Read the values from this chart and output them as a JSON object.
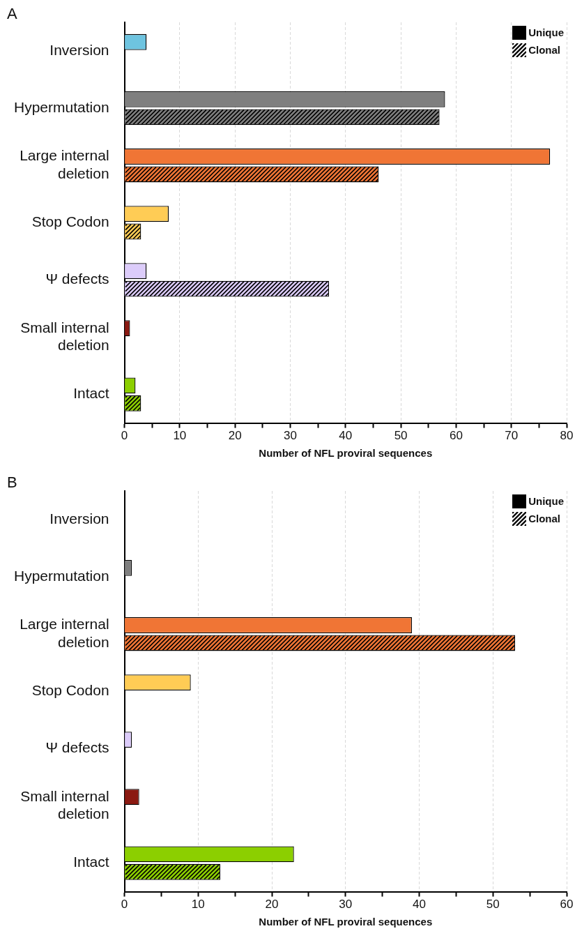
{
  "chart_data": [
    {
      "type": "bar",
      "title": "A",
      "orientation": "horizontal",
      "xlabel": "Number of NFL proviral sequences",
      "categories": [
        "Inversion",
        "Hypermutation",
        "Large internal deletion",
        "Stop Codon",
        "Ψ defects",
        "Small internal deletion",
        "Intact"
      ],
      "series": [
        {
          "name": "Unique",
          "colors": [
            "#6ec4e0",
            "#7f7f7f",
            "#f07535",
            "#ffcc55",
            "#dcccfa",
            "#8b1a12",
            "#8ccf00"
          ],
          "values": [
            4,
            58,
            77,
            8,
            4,
            1,
            2
          ]
        },
        {
          "name": "Clonal",
          "colors": [
            "#6ec4e0",
            "#7f7f7f",
            "#f07535",
            "#ffcc55",
            "#dcccfa",
            "#8b1a12",
            "#8ccf00"
          ],
          "values": [
            null,
            57,
            46,
            3,
            37,
            null,
            3
          ]
        }
      ],
      "xlim": [
        0,
        80
      ],
      "xticks": [
        0,
        {
          "value": 5,
          "label": null
        },
        10,
        {
          "value": 15,
          "label": null
        },
        20,
        {
          "value": 25,
          "label": null
        },
        30,
        {
          "value": 35,
          "label": null
        },
        40,
        {
          "value": 45,
          "label": null
        },
        50,
        {
          "value": 55,
          "label": null
        },
        60,
        {
          "value": 65,
          "label": null
        },
        70,
        {
          "value": 75,
          "label": null
        },
        80
      ],
      "grid": "x",
      "legend": "top right"
    },
    {
      "type": "bar",
      "title": "B",
      "orientation": "horizontal",
      "xlabel": "Number of NFL proviral sequences",
      "categories": [
        "Inversion",
        "Hypermutation",
        "Large internal deletion",
        "Stop Codon",
        "Ψ defects",
        "Small internal deletion",
        "Intact"
      ],
      "series": [
        {
          "name": "Unique",
          "colors": [
            "#6ec4e0",
            "#7f7f7f",
            "#f07535",
            "#ffcc55",
            "#dcccfa",
            "#8b1a12",
            "#8ccf00"
          ],
          "values": [
            null,
            1,
            39,
            9,
            1,
            2,
            23
          ]
        },
        {
          "name": "Clonal",
          "colors": [
            "#6ec4e0",
            "#7f7f7f",
            "#f07535",
            "#ffcc55",
            "#dcccfa",
            "#8b1a12",
            "#8ccf00"
          ],
          "values": [
            null,
            null,
            53,
            null,
            null,
            null,
            13
          ]
        }
      ],
      "xlim": [
        0,
        60
      ],
      "xticks": [
        0,
        {
          "value": 5,
          "label": null
        },
        10,
        {
          "value": 15,
          "label": null
        },
        20,
        {
          "value": 25,
          "label": null
        },
        30,
        {
          "value": 35,
          "label": null
        },
        40,
        {
          "value": 45,
          "label": null
        },
        50,
        {
          "value": 55,
          "label": null
        },
        60
      ],
      "grid": "x",
      "legend": "top right"
    }
  ]
}
